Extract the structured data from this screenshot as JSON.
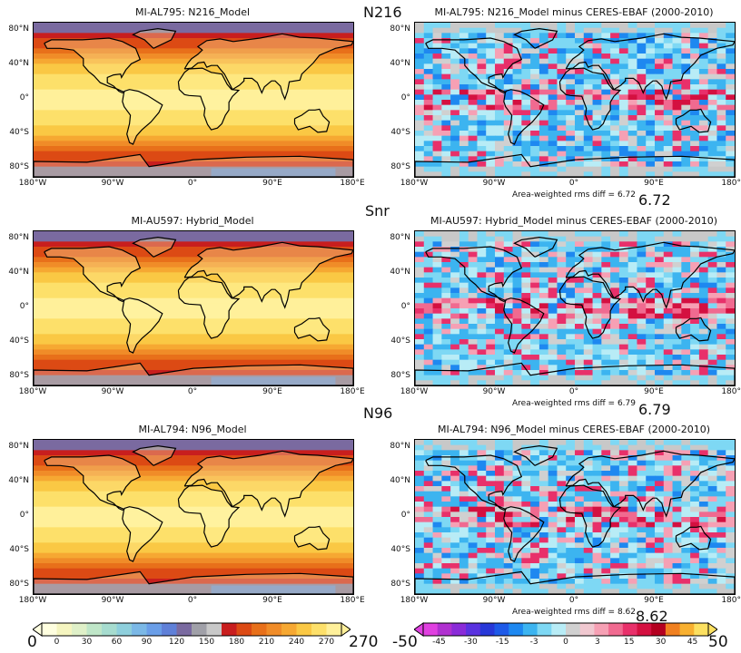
{
  "row_labels": [
    "N216",
    "Snr",
    "N96"
  ],
  "rms_callouts": [
    "6.72",
    "6.79",
    "8.62"
  ],
  "lat_ticks": [
    "80°N",
    "40°N",
    "0°",
    "40°S",
    "80°S"
  ],
  "lon_ticks": [
    "180°W",
    "90°W",
    "0°",
    "90°E",
    "180°E"
  ],
  "panels": [
    {
      "title": "MI-AL795: N216_Model",
      "kind": "abs"
    },
    {
      "title": "MI-AL795: N216_Model minus CERES-EBAF (2000-2010)",
      "kind": "diff",
      "rms_text": "Area-weighted rms diff = 6.72"
    },
    {
      "title": "MI-AU597: Hybrid_Model",
      "kind": "abs"
    },
    {
      "title": "MI-AU597: Hybrid_Model minus CERES-EBAF (2000-2010)",
      "kind": "diff",
      "rms_text": "Area-weighted rms diff = 6.79"
    },
    {
      "title": "MI-AL794: N96_Model",
      "kind": "abs"
    },
    {
      "title": "MI-AL794: N96_Model minus CERES-EBAF (2000-2010)",
      "kind": "diff",
      "rms_text": "Area-weighted rms diff = 8.62"
    }
  ],
  "colorbar_abs": {
    "ticks": [
      "0",
      "30",
      "60",
      "90",
      "120",
      "150",
      "180",
      "210",
      "240",
      "270"
    ],
    "end_min": "0",
    "end_max": "270",
    "colors": [
      "#ffffe0",
      "#f5f5c0",
      "#dff0c8",
      "#bfe6c8",
      "#a6dccf",
      "#8ecfdc",
      "#7bb8e6",
      "#6a9ee8",
      "#5f80d8",
      "#7a6aa0",
      "#a0a0a8",
      "#c8c8c8",
      "#c81e1e",
      "#dc4a14",
      "#e8701a",
      "#f08c28",
      "#f6a832",
      "#fac844",
      "#fde06a",
      "#fff09a"
    ]
  },
  "colorbar_diff": {
    "ticks": [
      "-45",
      "-30",
      "-15",
      "-3",
      "0",
      "3",
      "15",
      "30",
      "45"
    ],
    "end_min": "-50",
    "end_max": "50",
    "colors": [
      "#e040e0",
      "#b030d0",
      "#8a2bd8",
      "#5a32e0",
      "#2838d8",
      "#1e5ae8",
      "#1e88f0",
      "#3cb4f0",
      "#7ed8f4",
      "#b8ecf6",
      "#d0d0d0",
      "#f0c8d0",
      "#f6a0b4",
      "#f06a90",
      "#e8306a",
      "#d41040",
      "#b40020",
      "#f08020",
      "#f8b030",
      "#fce060"
    ]
  },
  "chart_data": [
    {
      "type": "heatmap",
      "title": "MI-AL795: N216_Model",
      "xlim": [
        -180,
        180
      ],
      "ylim": [
        -90,
        90
      ],
      "colorbar_range": [
        0,
        270
      ]
    },
    {
      "type": "heatmap",
      "title": "MI-AL795: N216_Model minus CERES-EBAF (2000-2010)",
      "xlim": [
        -180,
        180
      ],
      "ylim": [
        -90,
        90
      ],
      "colorbar_range": [
        -50,
        50
      ],
      "rms_diff": 6.72
    },
    {
      "type": "heatmap",
      "title": "MI-AU597: Hybrid_Model",
      "xlim": [
        -180,
        180
      ],
      "ylim": [
        -90,
        90
      ],
      "colorbar_range": [
        0,
        270
      ]
    },
    {
      "type": "heatmap",
      "title": "MI-AU597: Hybrid_Model minus CERES-EBAF (2000-2010)",
      "xlim": [
        -180,
        180
      ],
      "ylim": [
        -90,
        90
      ],
      "colorbar_range": [
        -50,
        50
      ],
      "rms_diff": 6.79
    },
    {
      "type": "heatmap",
      "title": "MI-AL794: N96_Model",
      "xlim": [
        -180,
        180
      ],
      "ylim": [
        -90,
        90
      ],
      "colorbar_range": [
        0,
        270
      ]
    },
    {
      "type": "heatmap",
      "title": "MI-AL794: N96_Model minus CERES-EBAF (2000-2010)",
      "xlim": [
        -180,
        180
      ],
      "ylim": [
        -90,
        90
      ],
      "colorbar_range": [
        -50,
        50
      ],
      "rms_diff": 8.62
    }
  ]
}
